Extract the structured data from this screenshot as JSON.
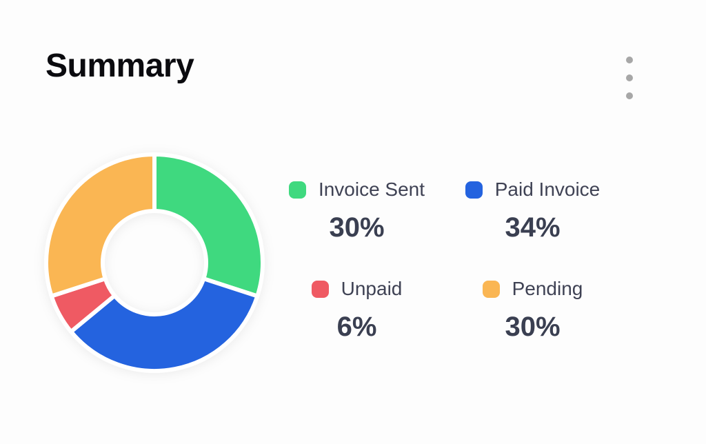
{
  "card": {
    "title": "Summary"
  },
  "menu": {
    "icon": "kebab-menu-icon"
  },
  "legend": {
    "items": [
      {
        "label": "Invoice Sent",
        "percent": "30%",
        "color": "#3fd97f"
      },
      {
        "label": "Paid Invoice",
        "percent": "34%",
        "color": "#2463df"
      },
      {
        "label": "Unpaid",
        "percent": "6%",
        "color": "#ef5a63"
      },
      {
        "label": "Pending",
        "percent": "30%",
        "color": "#fab653"
      }
    ]
  },
  "colors": {
    "title_text": "#0b0b0f",
    "label_text": "#3f4254",
    "percent_text": "#3a3f51",
    "menu_dots": "#a7a7a7",
    "background": "#fdfdfd",
    "slice_gap": "#ffffff"
  },
  "chart_data": {
    "type": "pie",
    "title": "Summary",
    "donut": true,
    "labels": [
      "Invoice Sent",
      "Paid Invoice",
      "Unpaid",
      "Pending"
    ],
    "values": [
      30,
      34,
      6,
      30
    ],
    "colors": [
      "#3fd97f",
      "#2463df",
      "#ef5a63",
      "#fab653"
    ],
    "unit": "%",
    "start_angle": "top",
    "direction": "clockwise",
    "inner_radius_ratio": 0.48,
    "slice_gap_color": "#ffffff",
    "legend_position": "right"
  }
}
